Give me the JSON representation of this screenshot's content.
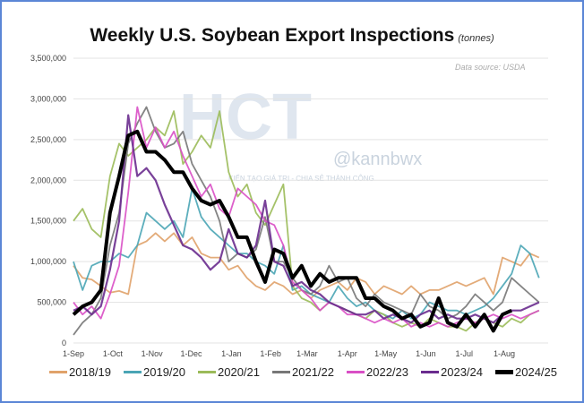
{
  "chart_data": {
    "type": "line",
    "title": "Weekly U.S. Soybean Export Inspections",
    "title_unit": "(tonnes)",
    "source": "Data source: USDA",
    "xlabel": "",
    "ylabel": "",
    "ylim": [
      0,
      3500000
    ],
    "yticks": [
      0,
      500000,
      1000000,
      1500000,
      2000000,
      2500000,
      3000000,
      3500000
    ],
    "ytick_labels": [
      "0",
      "500,000",
      "1,000,000",
      "1,500,000",
      "2,000,000",
      "2,500,000",
      "3,000,000",
      "3,500,000"
    ],
    "xtick_labels": [
      "1-Sep",
      "1-Oct",
      "1-Nov",
      "1-Dec",
      "1-Jan",
      "1-Feb",
      "1-Mar",
      "1-Apr",
      "1-May",
      "1-Jun",
      "1-Jul",
      "1-Aug"
    ],
    "weeks": 52,
    "grid": true,
    "legend": "bottom",
    "series": [
      {
        "name": "2018/19",
        "color": "#e0a26a",
        "width": 1.8,
        "values": [
          950,
          800,
          780,
          700,
          620,
          640,
          600,
          1200,
          1250,
          1350,
          1250,
          1350,
          1200,
          1300,
          1100,
          1050,
          1050,
          900,
          950,
          800,
          700,
          650,
          750,
          700,
          600,
          650,
          550,
          650,
          700,
          750,
          650,
          800,
          750,
          600,
          700,
          650,
          600,
          700,
          600,
          650,
          650,
          700,
          750,
          700,
          750,
          800,
          600,
          1050,
          1000,
          950,
          1100,
          1050
        ]
      },
      {
        "name": "2019/20",
        "color": "#4aa5b5",
        "width": 1.8,
        "values": [
          1000,
          650,
          950,
          1000,
          1000,
          1100,
          1050,
          1200,
          1600,
          1500,
          1400,
          1500,
          1300,
          1900,
          1550,
          1400,
          1300,
          1200,
          1100,
          1100,
          1000,
          950,
          850,
          1200,
          650,
          700,
          600,
          550,
          500,
          700,
          550,
          450,
          500,
          400,
          350,
          300,
          400,
          300,
          350,
          500,
          450,
          400,
          400,
          350,
          400,
          450,
          550,
          700,
          850,
          1200,
          1100,
          800
        ]
      },
      {
        "name": "2020/21",
        "color": "#9bbb59",
        "width": 1.8,
        "values": [
          1500,
          1650,
          1400,
          1300,
          2050,
          2450,
          2300,
          2400,
          2500,
          2650,
          2550,
          2850,
          2200,
          2350,
          2550,
          2400,
          2850,
          2100,
          1800,
          1950,
          1600,
          1450,
          1700,
          1950,
          700,
          550,
          500,
          400,
          500,
          450,
          400,
          350,
          300,
          400,
          350,
          250,
          200,
          250,
          200,
          300,
          250,
          200,
          200,
          150,
          250,
          300,
          250,
          200,
          300,
          250,
          350,
          400
        ]
      },
      {
        "name": "2021/22",
        "color": "#777777",
        "width": 1.8,
        "values": [
          100,
          250,
          350,
          550,
          1200,
          1600,
          2450,
          2700,
          2900,
          2600,
          2400,
          2450,
          2600,
          2200,
          2000,
          1800,
          1500,
          1000,
          1100,
          1050,
          1150,
          1550,
          1000,
          1000,
          800,
          650,
          600,
          700,
          950,
          750,
          800,
          550,
          450,
          600,
          500,
          450,
          400,
          350,
          600,
          450,
          400,
          300,
          350,
          450,
          600,
          500,
          400,
          500,
          800,
          700,
          600,
          500
        ]
      },
      {
        "name": "2022/23",
        "color": "#d94fc5",
        "width": 1.8,
        "values": [
          500,
          350,
          450,
          300,
          600,
          950,
          1850,
          2900,
          2400,
          2650,
          2400,
          2600,
          2300,
          2050,
          1800,
          1950,
          1650,
          1550,
          1900,
          1800,
          1700,
          1500,
          1450,
          1200,
          750,
          650,
          550,
          400,
          500,
          450,
          350,
          350,
          300,
          250,
          300,
          250,
          300,
          200,
          250,
          200,
          250,
          200,
          250,
          300,
          250,
          300,
          350,
          300,
          350,
          300,
          350,
          400
        ]
      },
      {
        "name": "2023/24",
        "color": "#6a2c8e",
        "width": 2.2,
        "values": [
          400,
          450,
          350,
          450,
          900,
          1500,
          2800,
          2050,
          2150,
          2000,
          1700,
          1450,
          1200,
          1150,
          1050,
          900,
          1000,
          1400,
          1100,
          1050,
          1200,
          1750,
          1000,
          950,
          700,
          750,
          650,
          600,
          500,
          450,
          400,
          350,
          350,
          400,
          300,
          350,
          300,
          250,
          350,
          400,
          300,
          350,
          300,
          300,
          350,
          300,
          250,
          350,
          400,
          400,
          450,
          500
        ]
      },
      {
        "name": "2024/25",
        "color": "#000000",
        "width": 4,
        "values": [
          350,
          450,
          500,
          650,
          1600,
          2050,
          2550,
          2600,
          2350,
          2350,
          2250,
          2100,
          2100,
          1900,
          1750,
          1700,
          1750,
          1550,
          1300,
          1300,
          1000,
          750,
          1150,
          1100,
          800,
          950,
          700,
          850,
          750,
          800,
          800,
          800,
          550,
          550,
          450,
          400,
          300,
          350,
          200,
          250,
          550,
          250,
          200,
          350,
          200,
          350,
          150,
          350,
          400,
          0,
          0,
          0
        ]
      }
    ]
  },
  "watermark": {
    "brand": "HCT",
    "handle": "@kannbwx",
    "tagline": "KIẾN TẠO GIÁ TRỊ - CHIA SẺ THÀNH CÔNG"
  }
}
